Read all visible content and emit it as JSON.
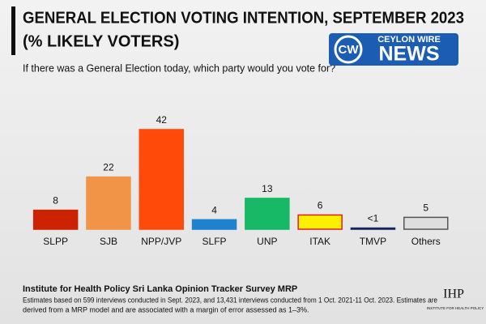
{
  "chart_data": {
    "type": "bar",
    "title_lines": [
      "GENERAL ELECTION VOTING INTENTION, SEPTEMBER 2023",
      "(% LIKELY VOTERS)"
    ],
    "subtitle": "If there was a General Election today, which party would you vote for?",
    "categories": [
      "SLPP",
      "SJB",
      "NPP/JVP",
      "SLFP",
      "UNP",
      "ITAK",
      "TMVP",
      "Others"
    ],
    "values": [
      8,
      22,
      42,
      4,
      13,
      6,
      0.5,
      5
    ],
    "value_labels": [
      "8",
      "22",
      "42",
      "4",
      "13",
      "6",
      "<1",
      "5"
    ],
    "colors": [
      "#cc2200",
      "#f29447",
      "#ff4a0a",
      "#1f82cf",
      "#17b866",
      "#fff000",
      "#15245e",
      "#dedede"
    ],
    "edge_colors": [
      "#cc2200",
      "#f29447",
      "#ff4a0a",
      "#1f82cf",
      "#17b866",
      "#e02020",
      "#15245e",
      "#555555"
    ]
  },
  "logo": {
    "mark": "CW",
    "top": "CEYLON WIRE",
    "bottom": "NEWS"
  },
  "footer": {
    "source": "Institute for Health Policy Sri Lanka Opinion Tracker Survey MRP",
    "notes": [
      "Estimates based on 599 interviews conducted in Sept. 2023, and 13,431 interviews conducted from 1 Oct. 2021-11 Oct. 2023. Estimates are",
      "derived from a MRP model and are associated with a margin of error assessed as 1–3%."
    ],
    "org_mark": "IHP",
    "org_name": "INSTITUTE FOR HEALTH POLICY"
  }
}
